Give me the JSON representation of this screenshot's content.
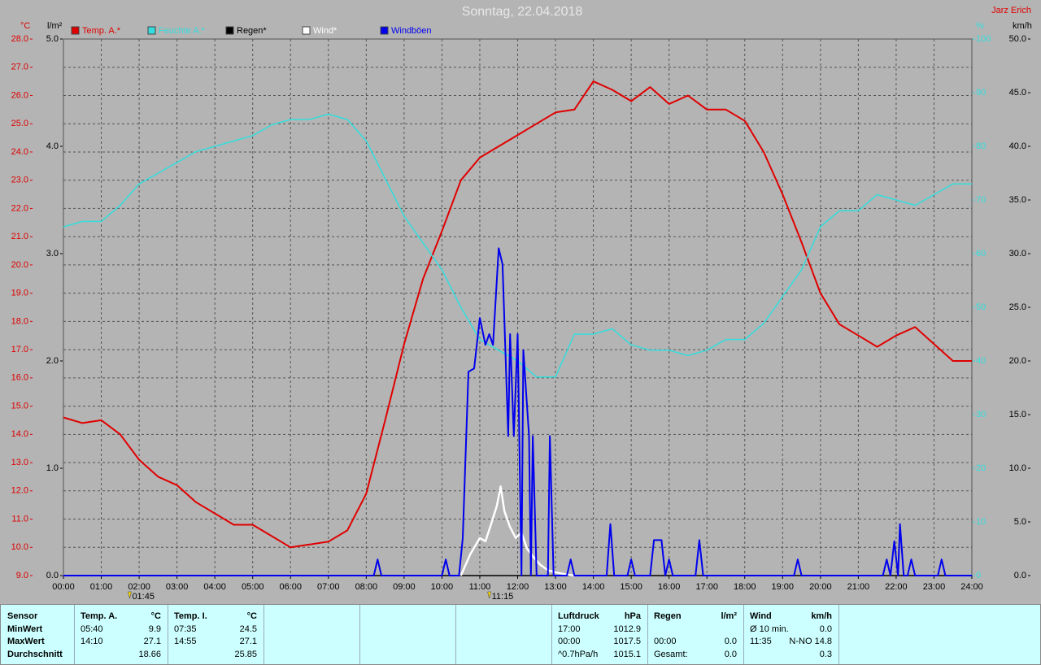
{
  "chart_data": {
    "type": "line",
    "title": "Sonntag, 22.04.2018",
    "author": "Jarz Erich",
    "xlim": [
      0,
      24
    ],
    "xticks": [
      {
        "value": 0,
        "label": "00:00"
      },
      {
        "value": 1,
        "label": "01:00"
      },
      {
        "value": 2,
        "label": "02:00"
      },
      {
        "value": 3,
        "label": "03:00"
      },
      {
        "value": 4,
        "label": "04:00"
      },
      {
        "value": 5,
        "label": "05:00"
      },
      {
        "value": 6,
        "label": "06:00"
      },
      {
        "value": 7,
        "label": "07:00"
      },
      {
        "value": 8,
        "label": "08:00"
      },
      {
        "value": 9,
        "label": "09:00"
      },
      {
        "value": 10,
        "label": "10:00"
      },
      {
        "value": 11,
        "label": "11:00"
      },
      {
        "value": 12,
        "label": "12:00"
      },
      {
        "value": 13,
        "label": "13:00"
      },
      {
        "value": 14,
        "label": "14:00"
      },
      {
        "value": 15,
        "label": "15:00"
      },
      {
        "value": 16,
        "label": "16:00"
      },
      {
        "value": 17,
        "label": "17:00"
      },
      {
        "value": 18,
        "label": "18:00"
      },
      {
        "value": 19,
        "label": "19:00"
      },
      {
        "value": 20,
        "label": "20:00"
      },
      {
        "value": 21,
        "label": "21:00"
      },
      {
        "value": 22,
        "label": "22:00"
      },
      {
        "value": 23,
        "label": "23:00"
      },
      {
        "value": 24,
        "label": "24:00"
      }
    ],
    "ylabel": "°C",
    "ycolor": "#e00000",
    "ylim": [
      9,
      28
    ],
    "yticks": [
      {
        "value": 9,
        "label": "9.0"
      },
      {
        "value": 10,
        "label": "10.0"
      },
      {
        "value": 11,
        "label": "11.0"
      },
      {
        "value": 12,
        "label": "12.0"
      },
      {
        "value": 13,
        "label": "13.0"
      },
      {
        "value": 14,
        "label": "14.0"
      },
      {
        "value": 15,
        "label": "15.0"
      },
      {
        "value": 16,
        "label": "16.0"
      },
      {
        "value": 17,
        "label": "17.0"
      },
      {
        "value": 18,
        "label": "18.0"
      },
      {
        "value": 19,
        "label": "19.0"
      },
      {
        "value": 20,
        "label": "20.0"
      },
      {
        "value": 21,
        "label": "21.0"
      },
      {
        "value": 22,
        "label": "22.0"
      },
      {
        "value": 23,
        "label": "23.0"
      },
      {
        "value": 24,
        "label": "24.0"
      },
      {
        "value": 25,
        "label": "25.0"
      },
      {
        "value": 26,
        "label": "26.0"
      },
      {
        "value": 27,
        "label": "27.0"
      },
      {
        "value": 28,
        "label": "28.0"
      }
    ],
    "y2label": "l/m²",
    "y2color": "#000000",
    "y2lim": [
      0,
      5
    ],
    "y2ticks": [
      {
        "value": 0,
        "label": "0.0"
      },
      {
        "value": 1,
        "label": "1.0"
      },
      {
        "value": 2,
        "label": "2.0"
      },
      {
        "value": 3,
        "label": "3.0"
      },
      {
        "value": 4,
        "label": "4.0"
      },
      {
        "value": 5,
        "label": "5.0"
      }
    ],
    "y3label": "%",
    "y3color": "#33dddd",
    "y3lim": [
      0,
      100
    ],
    "y3ticks": [
      0,
      10,
      20,
      30,
      40,
      50,
      60,
      70,
      80,
      90,
      100
    ],
    "y4label": "km/h",
    "y4color": "#000000",
    "y4lim": [
      0,
      50
    ],
    "y4ticks": [
      {
        "value": 0,
        "label": "0.0"
      },
      {
        "value": 5,
        "label": "5.0"
      },
      {
        "value": 10,
        "label": "10.0"
      },
      {
        "value": 15,
        "label": "15.0"
      },
      {
        "value": 20,
        "label": "20.0"
      },
      {
        "value": 25,
        "label": "25.0"
      },
      {
        "value": 30,
        "label": "30.0"
      },
      {
        "value": 35,
        "label": "35.0"
      },
      {
        "value": 40,
        "label": "40.0"
      },
      {
        "value": 45,
        "label": "45.0"
      },
      {
        "value": 50,
        "label": "50.0"
      }
    ],
    "grid": true,
    "annotations": [
      {
        "x": 1.75,
        "label": "01:45"
      },
      {
        "x": 11.25,
        "label": "11:15"
      }
    ],
    "series": [
      {
        "name": "Temp. A.*",
        "color": "#e00000",
        "axis": "y",
        "width": 2,
        "x": [
          0,
          0.5,
          1,
          1.5,
          2,
          2.5,
          3,
          3.5,
          4,
          4.5,
          5,
          5.5,
          6,
          6.5,
          7,
          7.5,
          8,
          8.5,
          9,
          9.5,
          10,
          10.5,
          11,
          11.5,
          12,
          12.5,
          13,
          13.5,
          14,
          14.5,
          15,
          15.5,
          16,
          16.5,
          17,
          17.5,
          18,
          18.5,
          19,
          19.5,
          20,
          20.5,
          21,
          21.5,
          22,
          22.5,
          23,
          23.5,
          24
        ],
        "values": [
          14.6,
          14.4,
          14.5,
          14.0,
          13.1,
          12.5,
          12.2,
          11.6,
          11.2,
          10.8,
          10.8,
          10.4,
          10.0,
          10.1,
          10.2,
          10.6,
          11.9,
          14.5,
          17.2,
          19.5,
          21.2,
          23.0,
          23.8,
          24.2,
          24.6,
          25.0,
          25.4,
          25.5,
          26.5,
          26.2,
          25.8,
          26.3,
          25.7,
          26.0,
          25.5,
          25.5,
          25.1,
          24.0,
          22.5,
          20.8,
          19.0,
          17.9,
          17.5,
          17.1,
          17.5,
          17.8,
          17.2,
          16.6,
          16.6
        ]
      },
      {
        "name": "Feuchte A.*",
        "color": "#33dddd",
        "axis": "y3",
        "width": 1.5,
        "x": [
          0,
          0.5,
          1,
          1.5,
          2,
          2.5,
          3,
          3.5,
          4,
          4.5,
          5,
          5.5,
          6,
          6.5,
          7,
          7.5,
          8,
          8.5,
          9,
          9.5,
          10,
          10.5,
          11,
          11.5,
          12,
          12.5,
          13,
          13.5,
          14,
          14.5,
          15,
          15.5,
          16,
          16.5,
          17,
          17.5,
          18,
          18.5,
          19,
          19.5,
          20,
          20.5,
          21,
          21.5,
          22,
          22.5,
          23,
          23.5,
          24
        ],
        "values": [
          65,
          66,
          66,
          69,
          73,
          75,
          77,
          79,
          80,
          81,
          82,
          84,
          85,
          85,
          86,
          85,
          81,
          74,
          67,
          62,
          57,
          50,
          44,
          42,
          40,
          37,
          37,
          45,
          45,
          46,
          43,
          42,
          42,
          41,
          42,
          44,
          44,
          47,
          52,
          57,
          65,
          68,
          68,
          71,
          70,
          69,
          71,
          73,
          73
        ]
      },
      {
        "name": "Regen*",
        "color": "#000000",
        "axis": "y2",
        "width": 1.5,
        "x": [
          0,
          24
        ],
        "values": [
          0,
          0
        ]
      },
      {
        "name": "Wind*",
        "color": "#ffffff",
        "axis": "y4",
        "width": 2.5,
        "x": [
          10.5,
          10.75,
          11,
          11.15,
          11.3,
          11.45,
          11.55,
          11.65,
          11.8,
          11.95,
          12.1,
          12.25,
          12.4,
          12.6,
          12.8,
          13,
          13.3,
          13.5
        ],
        "values": [
          0,
          2,
          3.5,
          3.2,
          4.8,
          6.5,
          8.3,
          6,
          4.5,
          3.5,
          4,
          2.5,
          1.8,
          1,
          0.5,
          0.3,
          0.1,
          0
        ]
      },
      {
        "name": "Windböen",
        "color": "#0000ee",
        "axis": "y4",
        "width": 2,
        "x": [
          0,
          8.2,
          8.3,
          8.4,
          10.0,
          10.1,
          10.2,
          10.45,
          10.55,
          10.7,
          10.85,
          11.0,
          11.15,
          11.25,
          11.35,
          11.5,
          11.6,
          11.75,
          11.8,
          11.9,
          12.0,
          12.1,
          12.15,
          12.3,
          12.35,
          12.4,
          12.5,
          12.8,
          12.85,
          12.95,
          13.3,
          13.4,
          13.5,
          14.35,
          14.45,
          14.55,
          14.9,
          15.0,
          15.1,
          15.5,
          15.6,
          15.8,
          15.9,
          16.0,
          16.1,
          16.7,
          16.8,
          16.9,
          19.3,
          19.4,
          19.5,
          21.65,
          21.75,
          21.85,
          21.95,
          22.05,
          22.1,
          22.2,
          22.3,
          22.4,
          22.5,
          23.1,
          23.2,
          23.3,
          24
        ],
        "values": [
          0,
          0,
          1.5,
          0,
          0,
          1.5,
          0,
          0,
          3.5,
          19,
          19.3,
          24,
          21.5,
          22.5,
          21.5,
          30.5,
          29,
          13,
          22.5,
          13,
          22.5,
          0,
          21,
          13,
          0,
          13,
          0,
          0,
          13,
          0,
          0,
          1.5,
          0,
          0,
          4.8,
          0,
          0,
          1.5,
          0,
          0,
          3.3,
          3.3,
          0,
          1.5,
          0,
          0,
          3.3,
          0,
          0,
          1.5,
          0,
          0,
          1.5,
          0,
          3.2,
          0,
          4.8,
          0,
          0,
          1.5,
          0,
          0,
          1.5,
          0,
          0
        ]
      }
    ]
  },
  "stats_table": {
    "columns": [
      {
        "cells": [
          [
            "Sensor",
            null
          ],
          [
            "MinWert",
            null
          ],
          [
            "MaxWert",
            null
          ],
          [
            "Durchschnitt",
            null
          ]
        ]
      },
      {
        "cells": [
          [
            "Temp. A.",
            "°C"
          ],
          [
            "05:40",
            "9.9"
          ],
          [
            "14:10",
            "27.1"
          ],
          [
            null,
            "18.66"
          ]
        ]
      },
      {
        "cells": [
          [
            "Temp. I.",
            "°C"
          ],
          [
            "07:35",
            "24.5"
          ],
          [
            "14:55",
            "27.1"
          ],
          [
            null,
            "25.85"
          ]
        ]
      },
      {
        "cells": [
          [
            "Luftdruck",
            "hPa"
          ],
          [
            "17:00",
            "1012.9"
          ],
          [
            "00:00",
            "1017.5"
          ],
          [
            "^0.7hPa/h",
            "1015.1"
          ]
        ]
      },
      {
        "cells": [
          [
            "Regen",
            "l/m²"
          ],
          [
            null,
            null
          ],
          [
            "00:00",
            "0.0"
          ],
          [
            "Gesamt:",
            "0.0"
          ]
        ]
      },
      {
        "cells": [
          [
            "Wind",
            "km/h"
          ],
          [
            "Ø 10 min.",
            "0.0"
          ],
          [
            "11:35",
            "N-NO 14.8"
          ],
          [
            null,
            "0.3"
          ]
        ]
      }
    ]
  }
}
